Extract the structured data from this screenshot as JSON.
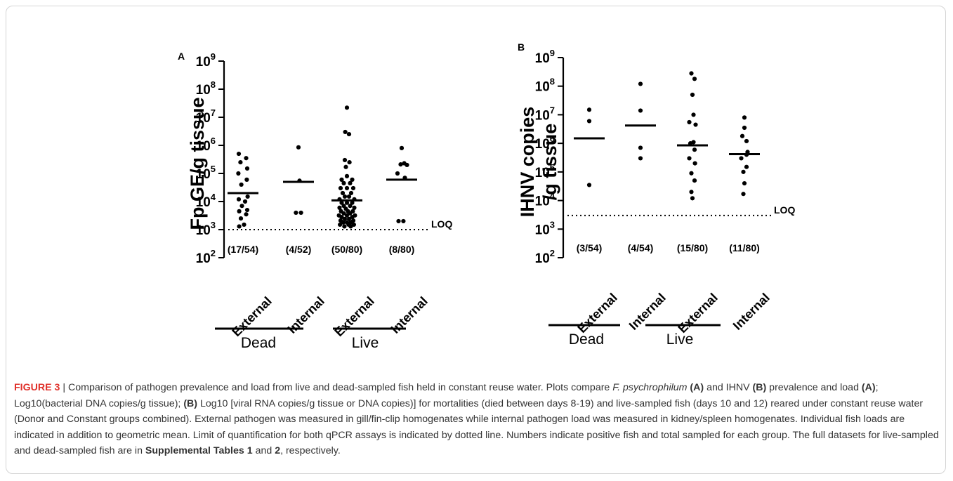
{
  "colors": {
    "accent": "#e0312b",
    "marker": "#000000",
    "caption_text": "#333333"
  },
  "chart_data": [
    {
      "type": "scatter",
      "panel_label": "A",
      "ylabel": "Fp GE/g tissue",
      "yscale": "log",
      "ylim": [
        100,
        1000000000
      ],
      "y_ticks": [
        {
          "base": "10",
          "exp": "2",
          "value": 100
        },
        {
          "base": "10",
          "exp": "3",
          "value": 1000
        },
        {
          "base": "10",
          "exp": "4",
          "value": 10000
        },
        {
          "base": "10",
          "exp": "5",
          "value": 100000
        },
        {
          "base": "10",
          "exp": "6",
          "value": 1000000
        },
        {
          "base": "10",
          "exp": "7",
          "value": 10000000
        },
        {
          "base": "10",
          "exp": "8",
          "value": 100000000
        },
        {
          "base": "10",
          "exp": "9",
          "value": 1000000000
        }
      ],
      "loq": {
        "label": "LOQ",
        "value": 1000
      },
      "categories": [
        "External",
        "Internal",
        "External",
        "Internal"
      ],
      "groups": [
        "Dead",
        "Live"
      ],
      "counts": [
        "(17/54)",
        "(4/52)",
        "(50/80)",
        "(8/80)"
      ],
      "geometric_means": [
        20000,
        50000,
        11000,
        60000
      ],
      "points": [
        [
          [
            -0.2,
            500000
          ],
          [
            0.15,
            350000
          ],
          [
            -0.12,
            250000
          ],
          [
            0.2,
            150000
          ],
          [
            -0.22,
            100000
          ],
          [
            0.18,
            60000
          ],
          [
            -0.08,
            40000
          ],
          [
            0.22,
            15000
          ],
          [
            -0.2,
            12000
          ],
          [
            0.1,
            10000
          ],
          [
            -0.05,
            7000
          ],
          [
            0.2,
            5000
          ],
          [
            -0.18,
            4500
          ],
          [
            0.15,
            3500
          ],
          [
            -0.1,
            2500
          ],
          [
            0.05,
            1500
          ],
          [
            -0.18,
            1300
          ]
        ],
        [
          [
            0,
            850000
          ],
          [
            0.05,
            55000
          ],
          [
            -0.12,
            4000
          ],
          [
            0.12,
            4000
          ]
        ],
        [
          [
            0,
            22000000
          ],
          [
            -0.08,
            3000000
          ],
          [
            0.1,
            2500000
          ],
          [
            -0.1,
            300000
          ],
          [
            0.12,
            250000
          ],
          [
            -0.05,
            170000
          ],
          [
            0,
            80000
          ],
          [
            -0.25,
            60000
          ],
          [
            0.25,
            60000
          ],
          [
            -0.15,
            45000
          ],
          [
            0.15,
            45000
          ],
          [
            -0.3,
            30000
          ],
          [
            0,
            30000
          ],
          [
            0.3,
            30000
          ],
          [
            -0.2,
            20000
          ],
          [
            0.2,
            20000
          ],
          [
            -0.1,
            15000
          ],
          [
            0.1,
            15000
          ],
          [
            -0.35,
            12000
          ],
          [
            0.35,
            12000
          ],
          [
            -0.25,
            9000
          ],
          [
            0,
            9000
          ],
          [
            0.25,
            9000
          ],
          [
            -0.15,
            7000
          ],
          [
            0.15,
            7000
          ],
          [
            -0.35,
            6000
          ],
          [
            0.35,
            6000
          ],
          [
            -0.05,
            5500
          ],
          [
            -0.28,
            4500
          ],
          [
            0.05,
            4500
          ],
          [
            0.28,
            4500
          ],
          [
            -0.15,
            3800
          ],
          [
            0.15,
            3800
          ],
          [
            -0.38,
            3200
          ],
          [
            0,
            3200
          ],
          [
            0.38,
            3200
          ],
          [
            -0.25,
            2800
          ],
          [
            0.25,
            2800
          ],
          [
            -0.1,
            2400
          ],
          [
            0.1,
            2400
          ],
          [
            -0.3,
            2100
          ],
          [
            0.3,
            2100
          ],
          [
            -0.18,
            1800
          ],
          [
            0,
            1800
          ],
          [
            0.18,
            1800
          ],
          [
            -0.33,
            1500
          ],
          [
            0.08,
            1500
          ],
          [
            0.33,
            1500
          ],
          [
            -0.12,
            1300
          ],
          [
            0.18,
            1300
          ]
        ],
        [
          [
            0,
            800000
          ],
          [
            0.12,
            230000
          ],
          [
            -0.05,
            210000
          ],
          [
            0.25,
            200000
          ],
          [
            -0.2,
            100000
          ],
          [
            0.15,
            70000
          ],
          [
            -0.15,
            2000
          ],
          [
            0.08,
            2000
          ]
        ]
      ]
    },
    {
      "type": "scatter",
      "panel_label": "B",
      "ylabel": "IHNV copies /g tissue",
      "ylabel_lines": [
        "IHNV copies",
        "/g tissue"
      ],
      "yscale": "log",
      "ylim": [
        100,
        1000000000
      ],
      "y_ticks": [
        {
          "base": "10",
          "exp": "2",
          "value": 100
        },
        {
          "base": "10",
          "exp": "3",
          "value": 1000
        },
        {
          "base": "10",
          "exp": "4",
          "value": 10000
        },
        {
          "base": "10",
          "exp": "5",
          "value": 100000
        },
        {
          "base": "10",
          "exp": "6",
          "value": 1000000
        },
        {
          "base": "10",
          "exp": "7",
          "value": 10000000
        },
        {
          "base": "10",
          "exp": "8",
          "value": 100000000
        },
        {
          "base": "10",
          "exp": "9",
          "value": 1000000000
        }
      ],
      "loq": {
        "label": "LOQ",
        "value": 3000
      },
      "categories": [
        "External",
        "Internal",
        "External",
        "Internal"
      ],
      "groups": [
        "Dead",
        "Live"
      ],
      "counts": [
        "(3/54)",
        "(4/54)",
        "(15/80)",
        "(11/80)"
      ],
      "geometric_means": [
        1500000,
        4200000,
        850000,
        420000
      ],
      "points": [
        [
          [
            0,
            15000000
          ],
          [
            0,
            6000000
          ],
          [
            0,
            35000
          ]
        ],
        [
          [
            0,
            120000000
          ],
          [
            0,
            14000000
          ],
          [
            0,
            700000
          ],
          [
            0,
            300000
          ]
        ],
        [
          [
            -0.05,
            280000000
          ],
          [
            0.1,
            180000000
          ],
          [
            0,
            50000000
          ],
          [
            0.05,
            10000000
          ],
          [
            -0.15,
            5500000
          ],
          [
            0.15,
            4500000
          ],
          [
            0.05,
            1100000
          ],
          [
            -0.1,
            1000000
          ],
          [
            0.1,
            600000
          ],
          [
            -0.15,
            300000
          ],
          [
            0.12,
            200000
          ],
          [
            -0.05,
            90000
          ],
          [
            0.1,
            50000
          ],
          [
            -0.05,
            20000
          ],
          [
            0,
            12000
          ]
        ],
        [
          [
            0,
            8000000
          ],
          [
            0,
            3500000
          ],
          [
            -0.1,
            1800000
          ],
          [
            0.1,
            1200000
          ],
          [
            0.15,
            500000
          ],
          [
            0.1,
            400000
          ],
          [
            -0.15,
            300000
          ],
          [
            0.1,
            150000
          ],
          [
            -0.05,
            100000
          ],
          [
            0,
            40000
          ],
          [
            -0.05,
            17000
          ]
        ]
      ]
    }
  ],
  "caption": {
    "label": "FIGURE 3",
    "separator": " | ",
    "s1": "Comparison of pathogen prevalence and load from live and dead-sampled fish held in constant reuse water. Plots compare ",
    "species": "F. psychrophilum",
    "s2": " ",
    "tag_a1": "(A)",
    "s3": " and IHNV ",
    "tag_b1": "(B)",
    "s4": " prevalence and load ",
    "tag_a2": "(A)",
    "s5": "; Log10(bacterial DNA copies/g tissue); ",
    "tag_b2": "(B)",
    "s6": " Log10 [viral RNA copies/g tissue or DNA copies)] for mortalities (died between days 8-19) and live-sampled fish (days 10 and 12) reared under constant reuse water (Donor and Constant groups combined). External pathogen was measured in gill/fin-clip homogenates while internal pathogen load was measured in kidney/spleen homogenates. Individual fish loads are indicated in addition to geometric mean. Limit of quantification for both qPCR assays is indicated by dotted line. Numbers indicate positive fish and total sampled for each group. The full datasets for live-sampled and dead-sampled fish are in ",
    "tables": "Supplemental Tables 1",
    "s7": " and ",
    "table2": "2",
    "s8": ", respectively."
  }
}
